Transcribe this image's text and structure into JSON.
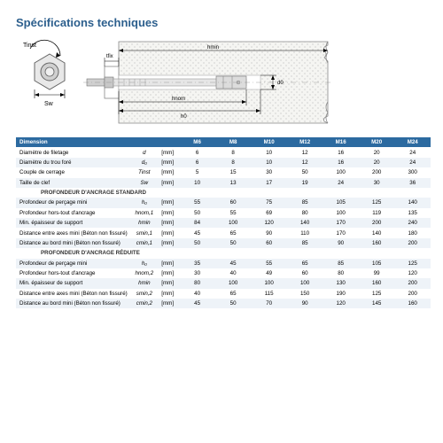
{
  "title": "Spécifications techniques",
  "diagram": {
    "labels": {
      "tinst": "Tinst",
      "sw": "Sw",
      "tfix": "tfix",
      "hmin": "hmin",
      "hnom": "hnom",
      "h0": "h0",
      "d0": "d0"
    }
  },
  "table": {
    "header": [
      "Dimension",
      "",
      "",
      "M6",
      "M8",
      "M10",
      "M12",
      "M16",
      "M20",
      "M24"
    ],
    "rows": [
      {
        "label": "Diamètre de filetage",
        "sym": "d",
        "unit": "[mm]",
        "vals": [
          "6",
          "8",
          "10",
          "12",
          "16",
          "20",
          "24"
        ]
      },
      {
        "label": "Diamètre du trou foré",
        "sym": "d₀",
        "unit": "[mm]",
        "vals": [
          "6",
          "8",
          "10",
          "12",
          "16",
          "20",
          "24"
        ]
      },
      {
        "label": "Couple de cerrage",
        "sym": "Tinst",
        "unit": "[mm]",
        "vals": [
          "5",
          "15",
          "30",
          "50",
          "100",
          "200",
          "300"
        ]
      },
      {
        "label": "Taille de clef",
        "sym": "Sw",
        "unit": "[mm]",
        "vals": [
          "10",
          "13",
          "17",
          "19",
          "24",
          "30",
          "36"
        ]
      }
    ],
    "section1": "PROFONDEUR D'ANCRAGE STANDARD",
    "rows2": [
      {
        "label": "Profondeur de perçage mini",
        "sym": "h₀",
        "unit": "[mm]",
        "vals": [
          "55",
          "60",
          "75",
          "85",
          "105",
          "125",
          "140"
        ]
      },
      {
        "label": "Profondeur hors-tout d'ancrage",
        "sym": "hnom,1",
        "unit": "[mm]",
        "vals": [
          "50",
          "55",
          "69",
          "80",
          "100",
          "119",
          "135"
        ]
      },
      {
        "label": "Min. épaisseur de support",
        "sym": "hmin",
        "unit": "[mm]",
        "vals": [
          "84",
          "100",
          "120",
          "140",
          "170",
          "200",
          "240"
        ]
      },
      {
        "label": "Distance entre axes mini (Béton non fissuré)",
        "sym": "smin,1",
        "unit": "[mm]",
        "vals": [
          "45",
          "65",
          "90",
          "110",
          "170",
          "140",
          "180"
        ]
      },
      {
        "label": "Distance au bord mini (Béton non fissuré)",
        "sym": "cmin,1",
        "unit": "[mm]",
        "vals": [
          "50",
          "50",
          "60",
          "85",
          "90",
          "160",
          "200"
        ]
      }
    ],
    "section2": "PROFONDEUR D'ANCRAGE RÉDUITE",
    "rows3": [
      {
        "label": "Profondeur de perçage mini",
        "sym": "h₀",
        "unit": "[mm]",
        "vals": [
          "35",
          "45",
          "55",
          "65",
          "85",
          "105",
          "125"
        ]
      },
      {
        "label": "Profondeur hors-tout d'ancrage",
        "sym": "hnom,2",
        "unit": "[mm]",
        "vals": [
          "30",
          "40",
          "49",
          "60",
          "80",
          "99",
          "120"
        ]
      },
      {
        "label": "Min. épaisseur de support",
        "sym": "hmin",
        "unit": "[mm]",
        "vals": [
          "80",
          "100",
          "100",
          "100",
          "130",
          "160",
          "200"
        ]
      },
      {
        "label": "Distance entre axes mini (Béton non fissuré)",
        "sym": "smin,2",
        "unit": "[mm]",
        "vals": [
          "40",
          "65",
          "115",
          "150",
          "190",
          "125",
          "200"
        ]
      },
      {
        "label": "Distance au bord mini (Béton non fissuré)",
        "sym": "cmin,2",
        "unit": "[mm]",
        "vals": [
          "45",
          "50",
          "70",
          "90",
          "120",
          "145",
          "160"
        ]
      }
    ]
  }
}
